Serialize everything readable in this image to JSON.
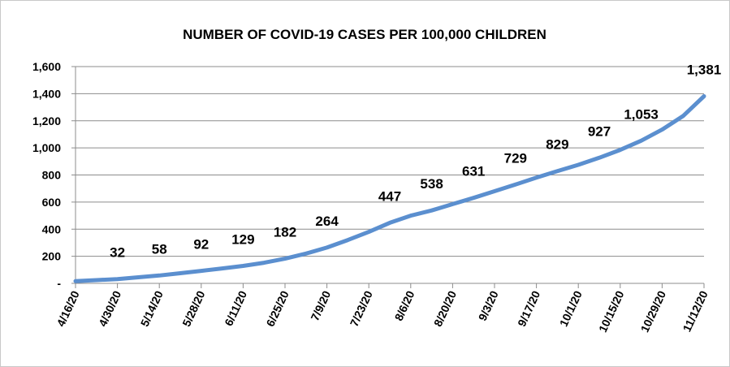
{
  "chart_data": {
    "type": "line",
    "title": "NUMBER OF COVID-19 CASES PER 100,000 CHILDREN",
    "xlabel": "",
    "ylabel": "",
    "ylim": [
      0,
      1600
    ],
    "grid": true,
    "y_ticks": [
      0,
      200,
      400,
      600,
      800,
      1000,
      1200,
      1400,
      1600
    ],
    "y_tick_labels": [
      "-",
      "200",
      "400",
      "600",
      "800",
      "1,000",
      "1,200",
      "1,400",
      "1,600"
    ],
    "x_tick_labels": [
      "4/16/20",
      "4/30/20",
      "5/14/20",
      "5/28/20",
      "6/11/20",
      "6/25/20",
      "7/9/20",
      "7/23/20",
      "8/6/20",
      "8/20/20",
      "9/3/20",
      "9/17/20",
      "10/1/20",
      "10/15/20",
      "10/29/20",
      "11/12/20"
    ],
    "series": [
      {
        "color": "#5B8FCF",
        "points": [
          {
            "x": "4/16/20",
            "y": 17,
            "label": ""
          },
          {
            "x": "4/23/20",
            "y": 24,
            "label": ""
          },
          {
            "x": "4/30/20",
            "y": 32,
            "label": "32"
          },
          {
            "x": "5/7/20",
            "y": 45,
            "label": ""
          },
          {
            "x": "5/14/20",
            "y": 58,
            "label": "58"
          },
          {
            "x": "5/21/20",
            "y": 75,
            "label": ""
          },
          {
            "x": "5/28/20",
            "y": 92,
            "label": "92"
          },
          {
            "x": "6/4/20",
            "y": 110,
            "label": ""
          },
          {
            "x": "6/11/20",
            "y": 129,
            "label": "129"
          },
          {
            "x": "6/18/20",
            "y": 152,
            "label": ""
          },
          {
            "x": "6/25/20",
            "y": 182,
            "label": "182"
          },
          {
            "x": "7/2/20",
            "y": 220,
            "label": ""
          },
          {
            "x": "7/9/20",
            "y": 264,
            "label": "264"
          },
          {
            "x": "7/16/20",
            "y": 320,
            "label": ""
          },
          {
            "x": "7/23/20",
            "y": 380,
            "label": ""
          },
          {
            "x": "7/30/20",
            "y": 447,
            "label": "447"
          },
          {
            "x": "8/6/20",
            "y": 500,
            "label": ""
          },
          {
            "x": "8/13/20",
            "y": 538,
            "label": "538"
          },
          {
            "x": "8/20/20",
            "y": 585,
            "label": ""
          },
          {
            "x": "8/27/20",
            "y": 631,
            "label": "631"
          },
          {
            "x": "9/3/20",
            "y": 680,
            "label": ""
          },
          {
            "x": "9/10/20",
            "y": 729,
            "label": "729"
          },
          {
            "x": "9/17/20",
            "y": 780,
            "label": ""
          },
          {
            "x": "9/24/20",
            "y": 829,
            "label": "829"
          },
          {
            "x": "10/1/20",
            "y": 875,
            "label": ""
          },
          {
            "x": "10/8/20",
            "y": 927,
            "label": "927"
          },
          {
            "x": "10/15/20",
            "y": 985,
            "label": ""
          },
          {
            "x": "10/22/20",
            "y": 1053,
            "label": "1,053"
          },
          {
            "x": "10/29/20",
            "y": 1135,
            "label": ""
          },
          {
            "x": "11/5/20",
            "y": 1235,
            "label": ""
          },
          {
            "x": "11/12/20",
            "y": 1381,
            "label": "1,381"
          }
        ]
      }
    ]
  }
}
